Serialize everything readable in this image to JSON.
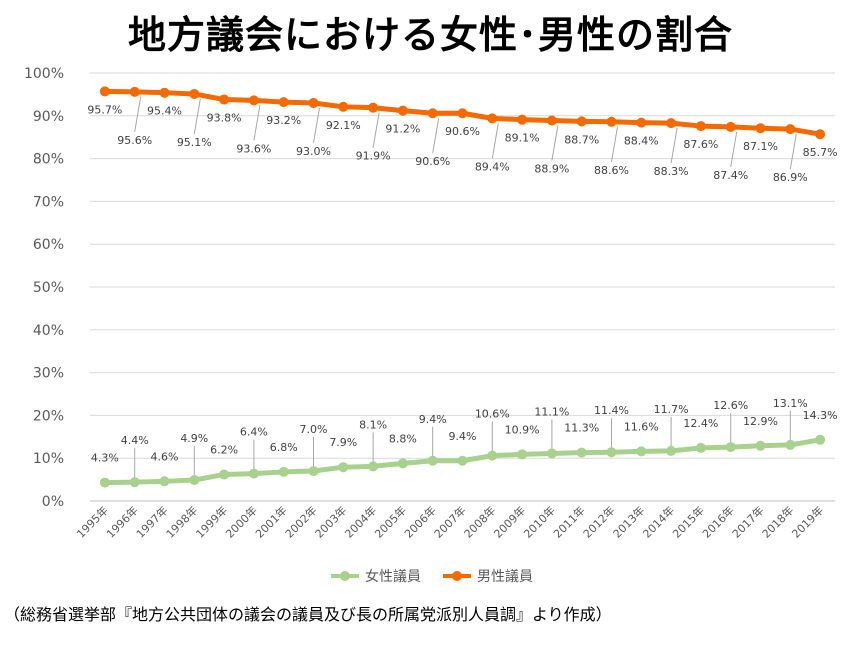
{
  "title": "地方議会における女性･男性の割合",
  "source_note": "（総務省選挙部『地方公共団体の議会の議員及び長の所属党派別人員調』より作成）",
  "chart_data": {
    "type": "line",
    "title": "地方議会における女性･男性の割合",
    "xlabel": "",
    "ylabel": "",
    "ylim": [
      0,
      100
    ],
    "yticks": [
      "0%",
      "10%",
      "20%",
      "30%",
      "40%",
      "50%",
      "60%",
      "70%",
      "80%",
      "90%",
      "100%"
    ],
    "grid": true,
    "legend_position": "bottom",
    "categories": [
      "1995年",
      "1996年",
      "1997年",
      "1998年",
      "1999年",
      "2000年",
      "2001年",
      "2002年",
      "2003年",
      "2004年",
      "2005年",
      "2006年",
      "2007年",
      "2008年",
      "2009年",
      "2010年",
      "2011年",
      "2012年",
      "2013年",
      "2014年",
      "2015年",
      "2016年",
      "2017年",
      "2018年",
      "2019年"
    ],
    "series": [
      {
        "name": "女性議員",
        "color": "#a9d18e",
        "values": [
          4.3,
          4.4,
          4.6,
          4.9,
          6.2,
          6.4,
          6.8,
          7.0,
          7.9,
          8.1,
          8.8,
          9.4,
          9.4,
          10.6,
          10.9,
          11.1,
          11.3,
          11.4,
          11.6,
          11.7,
          12.4,
          12.6,
          12.9,
          13.1,
          14.3
        ],
        "labels": [
          "4.3%",
          "4.4%",
          "4.6%",
          "4.9%",
          "6.2%",
          "6.4%",
          "6.8%",
          "7.0%",
          "7.9%",
          "8.1%",
          "8.8%",
          "9.4%",
          "9.4%",
          "10.6%",
          "10.9%",
          "11.1%",
          "11.3%",
          "11.4%",
          "11.6%",
          "11.7%",
          "12.4%",
          "12.6%",
          "12.9%",
          "13.1%",
          "14.3%"
        ]
      },
      {
        "name": "男性議員",
        "color": "#f46a00",
        "values": [
          95.7,
          95.6,
          95.4,
          95.1,
          93.8,
          93.6,
          93.2,
          93.0,
          92.1,
          91.9,
          91.2,
          90.6,
          90.6,
          89.4,
          89.1,
          88.9,
          88.7,
          88.6,
          88.4,
          88.3,
          87.6,
          87.4,
          87.1,
          86.9,
          85.7
        ],
        "labels": [
          "95.7%",
          "95.6%",
          "95.4%",
          "95.1%",
          "93.8%",
          "93.6%",
          "93.2%",
          "93.0%",
          "92.1%",
          "91.9%",
          "91.2%",
          "90.6%",
          "90.6%",
          "89.4%",
          "89.1%",
          "88.9%",
          "88.7%",
          "88.6%",
          "88.4%",
          "88.3%",
          "87.6%",
          "87.4%",
          "87.1%",
          "86.9%",
          "85.7%"
        ]
      }
    ]
  }
}
